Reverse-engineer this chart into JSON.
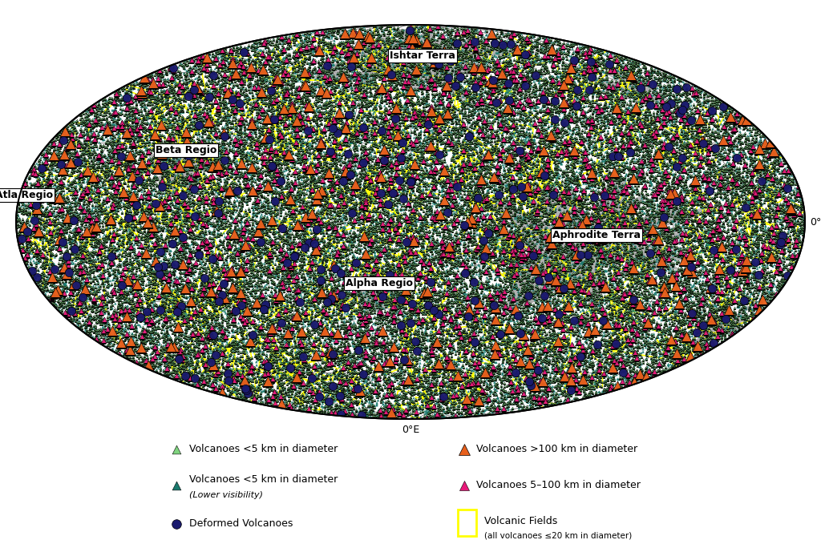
{
  "background_color": "#ffffff",
  "highland_color": "#aaaaaa",
  "grid_color": "#555555",
  "colors": {
    "small_light": "#7FD47F",
    "small_dark": "#1A7A6E",
    "large": "#E8601C",
    "medium": "#E8197A",
    "deformed": "#1A1A6E",
    "volcanic_field_edge": "#FFFF00"
  },
  "n_small_light": 40000,
  "n_small_dark": 20000,
  "n_large": 350,
  "n_medium": 2000,
  "n_deformed": 300,
  "n_fields": 500,
  "size_small_light": 5,
  "size_small_dark": 6,
  "size_large": 90,
  "size_medium": 25,
  "size_deformed": 55,
  "lw_small_light": 0.3,
  "lw_small_dark": 0.0,
  "lw_large": 0.5,
  "lw_medium": 0.4,
  "lw_deformed": 0.5,
  "regions": [
    {
      "name": "Ishtar Terra",
      "lon": 10,
      "lat": 68
    },
    {
      "name": "Beta Regio",
      "lon": -110,
      "lat": 27
    },
    {
      "name": "Atla Regio",
      "lon": -178,
      "lat": 10
    },
    {
      "name": "Alpha Regio",
      "lon": -15,
      "lat": -23
    },
    {
      "name": "Aphrodite Terra",
      "lon": 85,
      "lat": -5
    }
  ],
  "highlands": [
    {
      "lon": 10,
      "lat": 70,
      "size_lon": 55,
      "size_lat": 16,
      "seed": 101
    },
    {
      "lon": -110,
      "lat": 22,
      "size_lon": 14,
      "size_lat": 10,
      "seed": 102
    },
    {
      "lon": 80,
      "lat": -8,
      "size_lon": 50,
      "size_lat": 18,
      "seed": 103
    },
    {
      "lon": -15,
      "lat": -26,
      "size_lon": 12,
      "size_lat": 9,
      "seed": 104
    },
    {
      "lon": 140,
      "lat": 52,
      "size_lon": 14,
      "size_lat": 8,
      "seed": 105
    },
    {
      "lon": -55,
      "lat": 58,
      "size_lon": 12,
      "size_lat": 7,
      "seed": 106
    },
    {
      "lon": 170,
      "lat": -40,
      "size_lon": 10,
      "size_lat": 7,
      "seed": 107
    }
  ]
}
